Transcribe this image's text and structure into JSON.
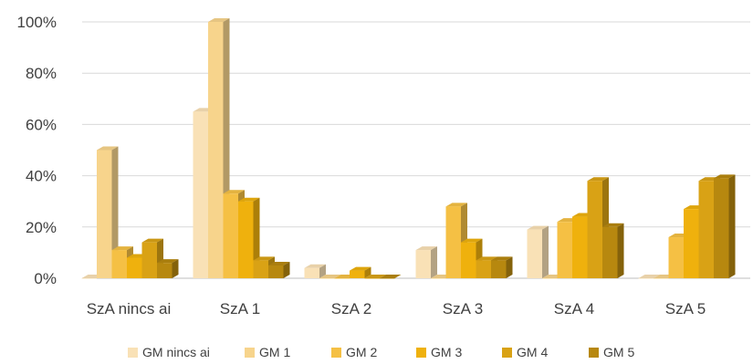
{
  "chart_data": {
    "type": "bar",
    "categories": [
      "SzA nincs ai",
      "SzA 1",
      "SzA 2",
      "SzA 3",
      "SzA 4",
      "SzA 5"
    ],
    "series": [
      {
        "name": "GM nincs ai",
        "color": "#F9E1B6",
        "values": [
          0,
          65,
          4,
          11,
          19,
          0
        ]
      },
      {
        "name": "GM 1",
        "color": "#F7D48C",
        "values": [
          50,
          100,
          0,
          0,
          0,
          0
        ]
      },
      {
        "name": "GM 2",
        "color": "#F5C044",
        "values": [
          11,
          33,
          0,
          28,
          22,
          16
        ]
      },
      {
        "name": "GM 3",
        "color": "#EFB10D",
        "values": [
          8,
          30,
          3,
          14,
          24,
          27
        ]
      },
      {
        "name": "GM 4",
        "color": "#D9A215",
        "values": [
          14,
          7,
          0,
          7,
          38,
          38
        ]
      },
      {
        "name": "GM 5",
        "color": "#B7880F",
        "values": [
          6,
          5,
          0,
          7,
          20,
          39
        ]
      }
    ],
    "y_ticks": [
      "0%",
      "20%",
      "40%",
      "60%",
      "80%",
      "100%"
    ],
    "ylim": [
      0,
      100
    ],
    "grid": true,
    "legend_position": "bottom"
  }
}
